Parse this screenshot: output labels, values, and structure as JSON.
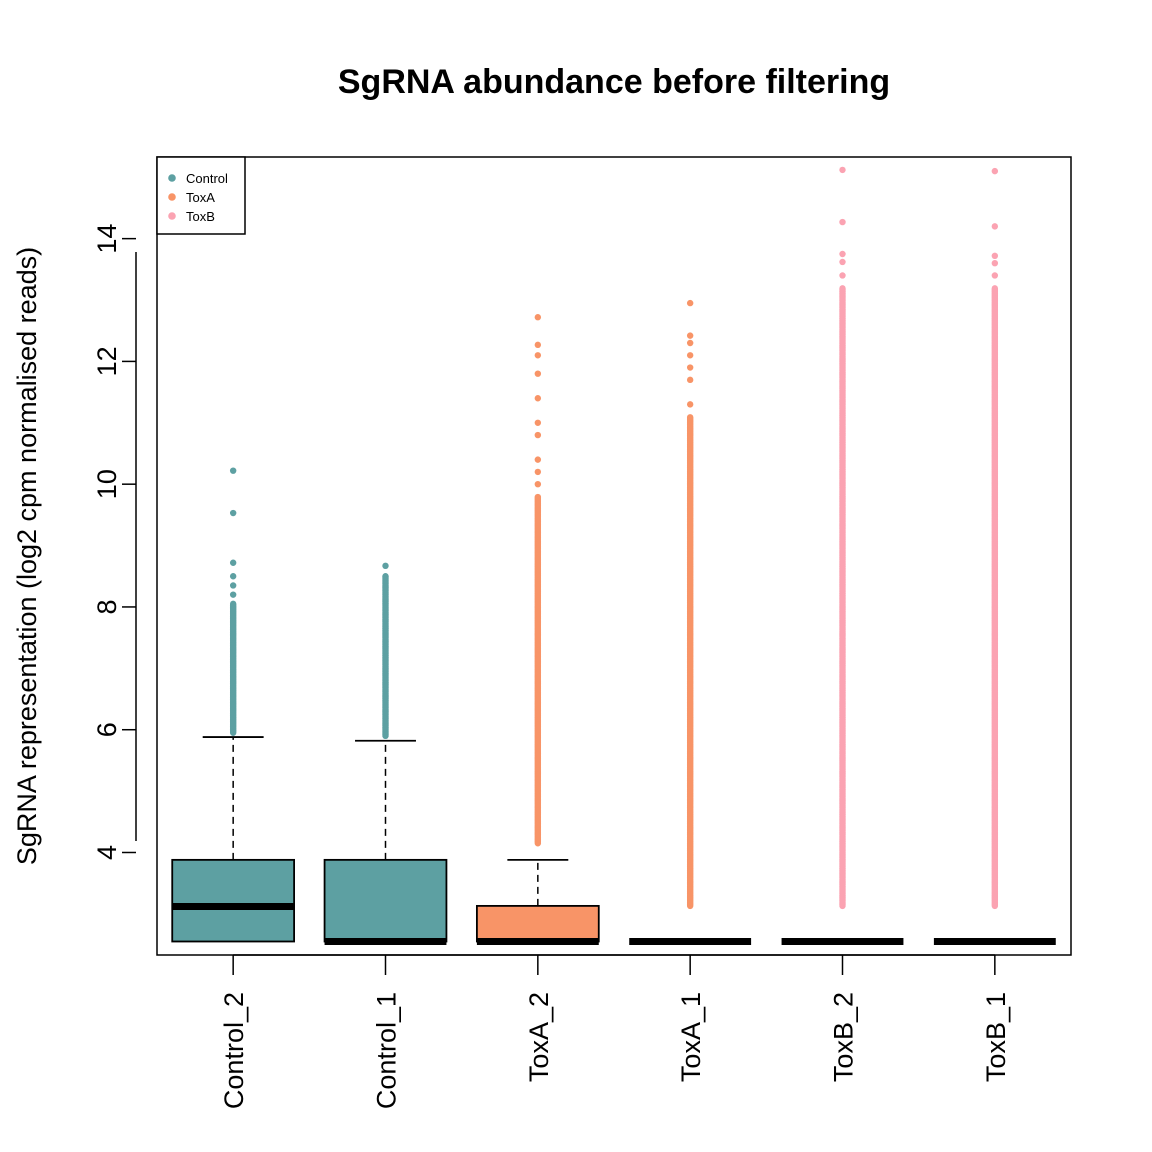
{
  "chart_data": {
    "type": "boxplot",
    "title": "SgRNA abundance before filtering",
    "xlabel": "",
    "ylabel": "SgRNA representation (log2 cpm normalised reads)",
    "ylim": [
      2.33,
      15.33
    ],
    "yticks": [
      4,
      6,
      8,
      10,
      12,
      14
    ],
    "legend": {
      "position": "top-left",
      "entries": [
        {
          "label": "Control",
          "color": "#5da0a2"
        },
        {
          "label": "ToxA",
          "color": "#f89467"
        },
        {
          "label": "ToxB",
          "color": "#fba3b2"
        }
      ]
    },
    "categories": [
      "Control_2",
      "Control_1",
      "ToxA_2",
      "ToxA_1",
      "ToxB_2",
      "ToxB_1"
    ],
    "series": [
      {
        "name": "Control_2",
        "group": "Control",
        "color": "#5da0a2",
        "min": 2.55,
        "q1": 2.55,
        "median": 3.12,
        "q3": 3.88,
        "max": 5.88,
        "outliers_range": [
          5.95,
          8.05
        ],
        "outliers": [
          8.2,
          8.35,
          8.5,
          8.72,
          9.53,
          10.22
        ]
      },
      {
        "name": "Control_1",
        "group": "Control",
        "color": "#5da0a2",
        "min": 2.55,
        "q1": 2.55,
        "median": 2.55,
        "q3": 3.88,
        "max": 5.82,
        "outliers_range": [
          5.9,
          8.5
        ],
        "outliers": [
          8.67
        ]
      },
      {
        "name": "ToxA_2",
        "group": "ToxA",
        "color": "#f89467",
        "min": 2.55,
        "q1": 2.55,
        "median": 2.55,
        "q3": 3.13,
        "max": 3.88,
        "outliers_range": [
          4.15,
          9.8
        ],
        "outliers": [
          10.0,
          10.2,
          10.4,
          10.8,
          11.0,
          11.4,
          11.8,
          12.1,
          12.27,
          12.72
        ]
      },
      {
        "name": "ToxA_1",
        "group": "ToxA",
        "color": "#f89467",
        "min": 2.55,
        "q1": 2.55,
        "median": 2.55,
        "q3": 2.55,
        "max": 2.55,
        "outliers_range": [
          3.13,
          11.1
        ],
        "outliers": [
          11.3,
          11.7,
          11.9,
          12.1,
          12.3,
          12.42,
          12.95
        ]
      },
      {
        "name": "ToxB_2",
        "group": "ToxB",
        "color": "#fba3b2",
        "min": 2.55,
        "q1": 2.55,
        "median": 2.55,
        "q3": 2.55,
        "max": 2.55,
        "outliers_range": [
          3.13,
          13.2
        ],
        "outliers": [
          13.4,
          13.62,
          13.75,
          14.27,
          15.12
        ]
      },
      {
        "name": "ToxB_1",
        "group": "ToxB",
        "color": "#fba3b2",
        "min": 2.55,
        "q1": 2.55,
        "median": 2.55,
        "q3": 2.55,
        "max": 2.55,
        "outliers_range": [
          3.13,
          13.2
        ],
        "outliers": [
          13.4,
          13.6,
          13.72,
          14.2,
          15.1
        ]
      }
    ]
  }
}
